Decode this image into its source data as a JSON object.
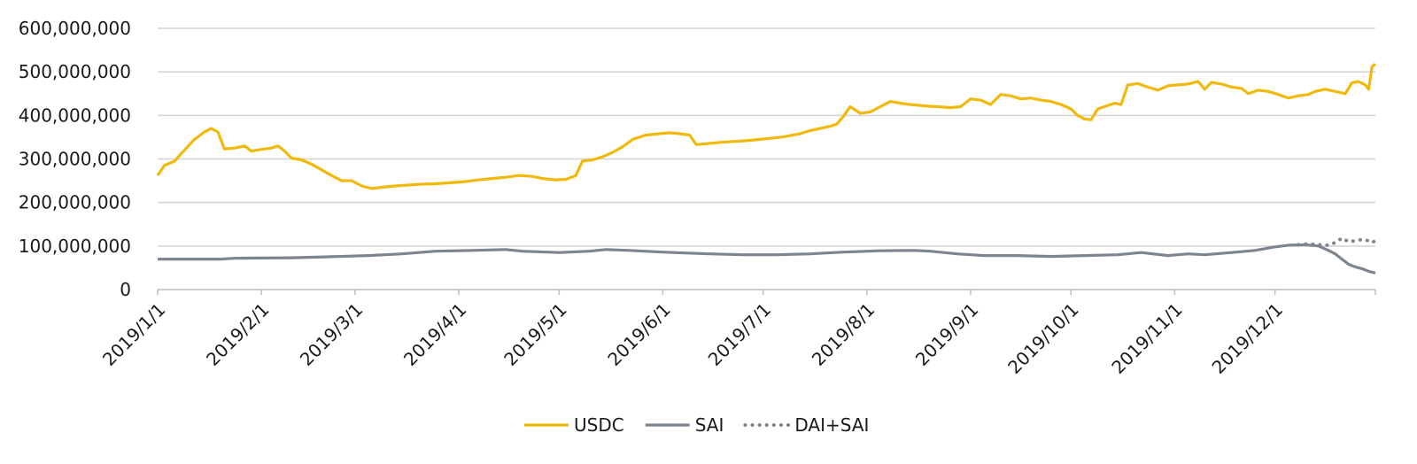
{
  "chart_data": {
    "type": "line",
    "title": "",
    "xlabel": "",
    "ylabel": "",
    "x_range": [
      "2019-01-01",
      "2019-12-31"
    ],
    "ylim": [
      0,
      600000000
    ],
    "y_ticks": [
      0,
      100000000,
      200000000,
      300000000,
      400000000,
      500000000,
      600000000
    ],
    "y_tick_labels": [
      "0",
      "100,000,000",
      "200,000,000",
      "300,000,000",
      "400,000,000",
      "500,000,000",
      "600,000,000"
    ],
    "x_ticks": [
      "2019-01-01",
      "2019-02-01",
      "2019-03-01",
      "2019-04-01",
      "2019-05-01",
      "2019-06-01",
      "2019-07-01",
      "2019-08-01",
      "2019-09-01",
      "2019-10-01",
      "2019-11-01",
      "2019-12-01"
    ],
    "x_tick_labels": [
      "2019/1/1",
      "2019/2/1",
      "2019/3/1",
      "2019/4/1",
      "2019/5/1",
      "2019/6/1",
      "2019/7/1",
      "2019/8/1",
      "2019/9/1",
      "2019/10/1",
      "2019/11/1",
      "2019/12/1"
    ],
    "grid": "horizontal",
    "legend_position": "bottom",
    "series": [
      {
        "name": "USDC",
        "color": "#f0b90b",
        "style": "solid",
        "points": [
          [
            "2019-01-01",
            262000000
          ],
          [
            "2019-01-03",
            285000000
          ],
          [
            "2019-01-06",
            295000000
          ],
          [
            "2019-01-09",
            320000000
          ],
          [
            "2019-01-12",
            345000000
          ],
          [
            "2019-01-15",
            362000000
          ],
          [
            "2019-01-17",
            370000000
          ],
          [
            "2019-01-19",
            362000000
          ],
          [
            "2019-01-21",
            323000000
          ],
          [
            "2019-01-24",
            325000000
          ],
          [
            "2019-01-27",
            330000000
          ],
          [
            "2019-01-29",
            318000000
          ],
          [
            "2019-02-01",
            322000000
          ],
          [
            "2019-02-04",
            325000000
          ],
          [
            "2019-02-06",
            330000000
          ],
          [
            "2019-02-08",
            318000000
          ],
          [
            "2019-02-10",
            302000000
          ],
          [
            "2019-02-13",
            298000000
          ],
          [
            "2019-02-16",
            288000000
          ],
          [
            "2019-02-19",
            275000000
          ],
          [
            "2019-02-22",
            262000000
          ],
          [
            "2019-02-25",
            250000000
          ],
          [
            "2019-02-28",
            250000000
          ],
          [
            "2019-03-03",
            238000000
          ],
          [
            "2019-03-06",
            232000000
          ],
          [
            "2019-03-09",
            235000000
          ],
          [
            "2019-03-13",
            238000000
          ],
          [
            "2019-03-17",
            240000000
          ],
          [
            "2019-03-21",
            242000000
          ],
          [
            "2019-03-25",
            243000000
          ],
          [
            "2019-03-29",
            245000000
          ],
          [
            "2019-04-03",
            248000000
          ],
          [
            "2019-04-07",
            252000000
          ],
          [
            "2019-04-11",
            255000000
          ],
          [
            "2019-04-15",
            258000000
          ],
          [
            "2019-04-19",
            262000000
          ],
          [
            "2019-04-23",
            260000000
          ],
          [
            "2019-04-26",
            255000000
          ],
          [
            "2019-04-30",
            252000000
          ],
          [
            "2019-05-03",
            253000000
          ],
          [
            "2019-05-06",
            262000000
          ],
          [
            "2019-05-08",
            295000000
          ],
          [
            "2019-05-11",
            298000000
          ],
          [
            "2019-05-14",
            305000000
          ],
          [
            "2019-05-17",
            315000000
          ],
          [
            "2019-05-20",
            328000000
          ],
          [
            "2019-05-23",
            345000000
          ],
          [
            "2019-05-27",
            355000000
          ],
          [
            "2019-05-31",
            358000000
          ],
          [
            "2019-06-03",
            360000000
          ],
          [
            "2019-06-06",
            358000000
          ],
          [
            "2019-06-09",
            355000000
          ],
          [
            "2019-06-11",
            333000000
          ],
          [
            "2019-06-14",
            335000000
          ],
          [
            "2019-06-18",
            338000000
          ],
          [
            "2019-06-22",
            340000000
          ],
          [
            "2019-06-26",
            342000000
          ],
          [
            "2019-06-30",
            345000000
          ],
          [
            "2019-07-04",
            348000000
          ],
          [
            "2019-07-08",
            352000000
          ],
          [
            "2019-07-12",
            358000000
          ],
          [
            "2019-07-15",
            365000000
          ],
          [
            "2019-07-18",
            370000000
          ],
          [
            "2019-07-21",
            375000000
          ],
          [
            "2019-07-23",
            380000000
          ],
          [
            "2019-07-25",
            398000000
          ],
          [
            "2019-07-27",
            420000000
          ],
          [
            "2019-07-30",
            405000000
          ],
          [
            "2019-08-02",
            408000000
          ],
          [
            "2019-08-05",
            420000000
          ],
          [
            "2019-08-08",
            432000000
          ],
          [
            "2019-08-11",
            428000000
          ],
          [
            "2019-08-14",
            425000000
          ],
          [
            "2019-08-18",
            422000000
          ],
          [
            "2019-08-22",
            420000000
          ],
          [
            "2019-08-26",
            418000000
          ],
          [
            "2019-08-29",
            420000000
          ],
          [
            "2019-09-01",
            438000000
          ],
          [
            "2019-09-04",
            435000000
          ],
          [
            "2019-09-07",
            425000000
          ],
          [
            "2019-09-10",
            448000000
          ],
          [
            "2019-09-13",
            445000000
          ],
          [
            "2019-09-16",
            438000000
          ],
          [
            "2019-09-19",
            440000000
          ],
          [
            "2019-09-22",
            435000000
          ],
          [
            "2019-09-25",
            432000000
          ],
          [
            "2019-09-28",
            425000000
          ],
          [
            "2019-10-01",
            415000000
          ],
          [
            "2019-10-03",
            400000000
          ],
          [
            "2019-10-05",
            392000000
          ],
          [
            "2019-10-07",
            390000000
          ],
          [
            "2019-10-09",
            415000000
          ],
          [
            "2019-10-11",
            420000000
          ],
          [
            "2019-10-14",
            428000000
          ],
          [
            "2019-10-16",
            425000000
          ],
          [
            "2019-10-18",
            470000000
          ],
          [
            "2019-10-21",
            473000000
          ],
          [
            "2019-10-24",
            465000000
          ],
          [
            "2019-10-27",
            458000000
          ],
          [
            "2019-10-30",
            468000000
          ],
          [
            "2019-11-02",
            470000000
          ],
          [
            "2019-11-05",
            472000000
          ],
          [
            "2019-11-08",
            478000000
          ],
          [
            "2019-11-10",
            460000000
          ],
          [
            "2019-11-12",
            476000000
          ],
          [
            "2019-11-15",
            472000000
          ],
          [
            "2019-11-18",
            465000000
          ],
          [
            "2019-11-21",
            462000000
          ],
          [
            "2019-11-23",
            450000000
          ],
          [
            "2019-11-26",
            458000000
          ],
          [
            "2019-11-29",
            455000000
          ],
          [
            "2019-12-02",
            448000000
          ],
          [
            "2019-12-05",
            440000000
          ],
          [
            "2019-12-08",
            445000000
          ],
          [
            "2019-12-11",
            448000000
          ],
          [
            "2019-12-13",
            455000000
          ],
          [
            "2019-12-16",
            460000000
          ],
          [
            "2019-12-19",
            455000000
          ],
          [
            "2019-12-22",
            450000000
          ],
          [
            "2019-12-24",
            475000000
          ],
          [
            "2019-12-26",
            478000000
          ],
          [
            "2019-12-28",
            470000000
          ],
          [
            "2019-12-29",
            460000000
          ],
          [
            "2019-12-30",
            512000000
          ],
          [
            "2019-12-31",
            518000000
          ]
        ]
      },
      {
        "name": "SAI",
        "color": "#7d8590",
        "style": "solid",
        "points": [
          [
            "2019-01-01",
            70000000
          ],
          [
            "2019-01-20",
            70000000
          ],
          [
            "2019-01-24",
            72000000
          ],
          [
            "2019-02-10",
            73000000
          ],
          [
            "2019-02-20",
            75000000
          ],
          [
            "2019-03-05",
            78000000
          ],
          [
            "2019-03-15",
            82000000
          ],
          [
            "2019-03-25",
            88000000
          ],
          [
            "2019-04-05",
            90000000
          ],
          [
            "2019-04-15",
            92000000
          ],
          [
            "2019-04-20",
            88000000
          ],
          [
            "2019-05-01",
            85000000
          ],
          [
            "2019-05-10",
            88000000
          ],
          [
            "2019-05-15",
            92000000
          ],
          [
            "2019-05-22",
            90000000
          ],
          [
            "2019-06-01",
            86000000
          ],
          [
            "2019-06-15",
            82000000
          ],
          [
            "2019-06-25",
            80000000
          ],
          [
            "2019-07-05",
            80000000
          ],
          [
            "2019-07-15",
            82000000
          ],
          [
            "2019-07-25",
            86000000
          ],
          [
            "2019-08-05",
            89000000
          ],
          [
            "2019-08-15",
            90000000
          ],
          [
            "2019-08-20",
            88000000
          ],
          [
            "2019-08-28",
            82000000
          ],
          [
            "2019-09-05",
            78000000
          ],
          [
            "2019-09-15",
            78000000
          ],
          [
            "2019-09-25",
            76000000
          ],
          [
            "2019-10-05",
            78000000
          ],
          [
            "2019-10-15",
            80000000
          ],
          [
            "2019-10-22",
            85000000
          ],
          [
            "2019-10-30",
            78000000
          ],
          [
            "2019-11-05",
            82000000
          ],
          [
            "2019-11-10",
            80000000
          ],
          [
            "2019-11-18",
            85000000
          ],
          [
            "2019-11-25",
            90000000
          ],
          [
            "2019-12-01",
            98000000
          ],
          [
            "2019-12-05",
            102000000
          ],
          [
            "2019-12-10",
            103000000
          ],
          [
            "2019-12-14",
            100000000
          ],
          [
            "2019-12-17",
            90000000
          ],
          [
            "2019-12-19",
            82000000
          ],
          [
            "2019-12-21",
            70000000
          ],
          [
            "2019-12-23",
            58000000
          ],
          [
            "2019-12-25",
            52000000
          ],
          [
            "2019-12-27",
            48000000
          ],
          [
            "2019-12-29",
            42000000
          ],
          [
            "2019-12-31",
            38000000
          ]
        ]
      },
      {
        "name": "DAI+SAI",
        "color": "#7d8590",
        "style": "dotted",
        "points": [
          [
            "2019-12-08",
            103000000
          ],
          [
            "2019-12-11",
            105000000
          ],
          [
            "2019-12-14",
            103000000
          ],
          [
            "2019-12-17",
            102000000
          ],
          [
            "2019-12-19",
            108000000
          ],
          [
            "2019-12-21",
            118000000
          ],
          [
            "2019-12-23",
            110000000
          ],
          [
            "2019-12-25",
            112000000
          ],
          [
            "2019-12-27",
            115000000
          ],
          [
            "2019-12-29",
            112000000
          ],
          [
            "2019-12-30",
            108000000
          ],
          [
            "2019-12-31",
            112000000
          ]
        ]
      }
    ]
  }
}
